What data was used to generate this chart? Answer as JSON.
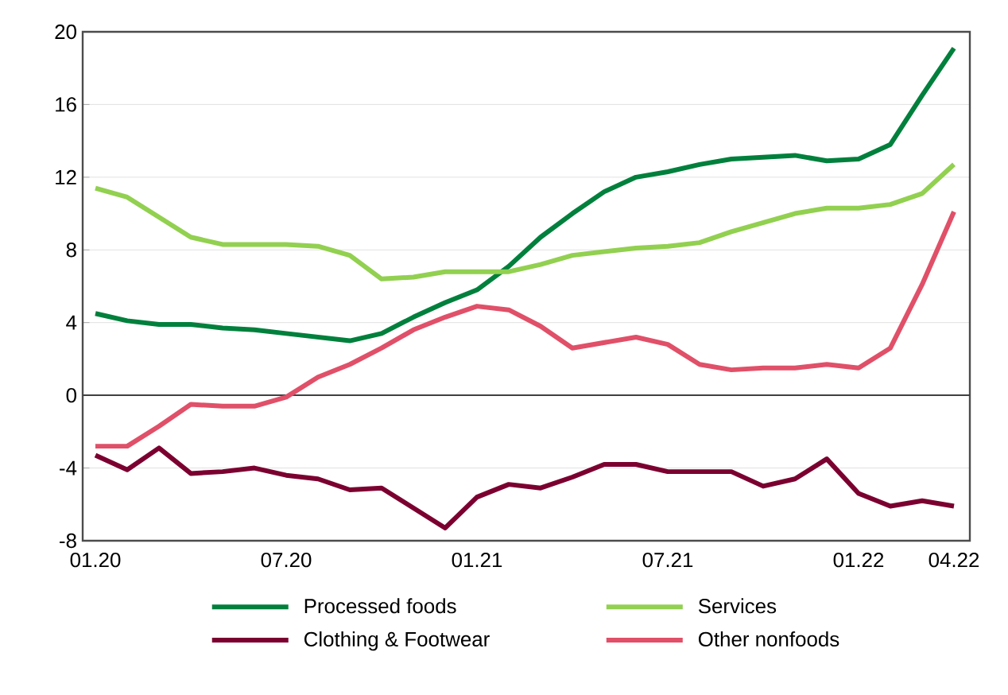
{
  "chart_data": {
    "type": "line",
    "categories": [
      "01.20",
      null,
      null,
      null,
      null,
      null,
      "07.20",
      null,
      null,
      null,
      null,
      null,
      "01.21",
      null,
      null,
      null,
      null,
      null,
      "07.21",
      null,
      null,
      null,
      null,
      null,
      "01.22",
      null,
      null,
      "04.22"
    ],
    "series": [
      {
        "name": "Processed foods",
        "color": "#00803c",
        "values": [
          4.5,
          4.1,
          3.9,
          3.9,
          3.7,
          3.6,
          3.4,
          3.2,
          3.0,
          3.4,
          4.3,
          5.1,
          5.8,
          7.1,
          8.7,
          10.0,
          11.2,
          12.0,
          12.3,
          12.7,
          13.0,
          13.1,
          13.2,
          12.9,
          13.0,
          13.8,
          16.5,
          19.1
        ]
      },
      {
        "name": "Services",
        "color": "#92d050",
        "values": [
          11.4,
          10.9,
          9.8,
          8.7,
          8.3,
          8.3,
          8.3,
          8.2,
          7.7,
          6.4,
          6.5,
          6.8,
          6.8,
          6.8,
          7.2,
          7.7,
          7.9,
          8.1,
          8.2,
          8.4,
          9.0,
          9.5,
          10.0,
          10.3,
          10.3,
          10.5,
          11.1,
          12.7
        ]
      },
      {
        "name": "Clothing & Footwear",
        "color": "#7b0030",
        "values": [
          -3.3,
          -4.1,
          -2.9,
          -4.3,
          -4.2,
          -4.0,
          -4.4,
          -4.6,
          -5.2,
          -5.1,
          -6.2,
          -7.3,
          -5.6,
          -4.9,
          -5.1,
          -4.5,
          -3.8,
          -3.8,
          -4.2,
          -4.2,
          -4.2,
          -5.0,
          -4.6,
          -3.5,
          -5.4,
          -6.1,
          -5.8,
          -6.1
        ]
      },
      {
        "name": "Other nonfoods",
        "color": "#e05068",
        "values": [
          -2.8,
          -2.8,
          -1.7,
          -0.5,
          -0.6,
          -0.6,
          -0.1,
          1.0,
          1.7,
          2.6,
          3.6,
          4.3,
          4.9,
          4.7,
          3.8,
          2.6,
          2.9,
          3.2,
          2.8,
          1.7,
          1.4,
          1.5,
          1.5,
          1.7,
          1.5,
          2.6,
          6.1,
          10.1
        ]
      }
    ],
    "ylim": [
      -8,
      20
    ],
    "yticks": [
      -8,
      -4,
      0,
      4,
      8,
      12,
      16,
      20
    ],
    "grid": "y",
    "legend": "bottom",
    "marker": "none",
    "line_style": "solid"
  }
}
